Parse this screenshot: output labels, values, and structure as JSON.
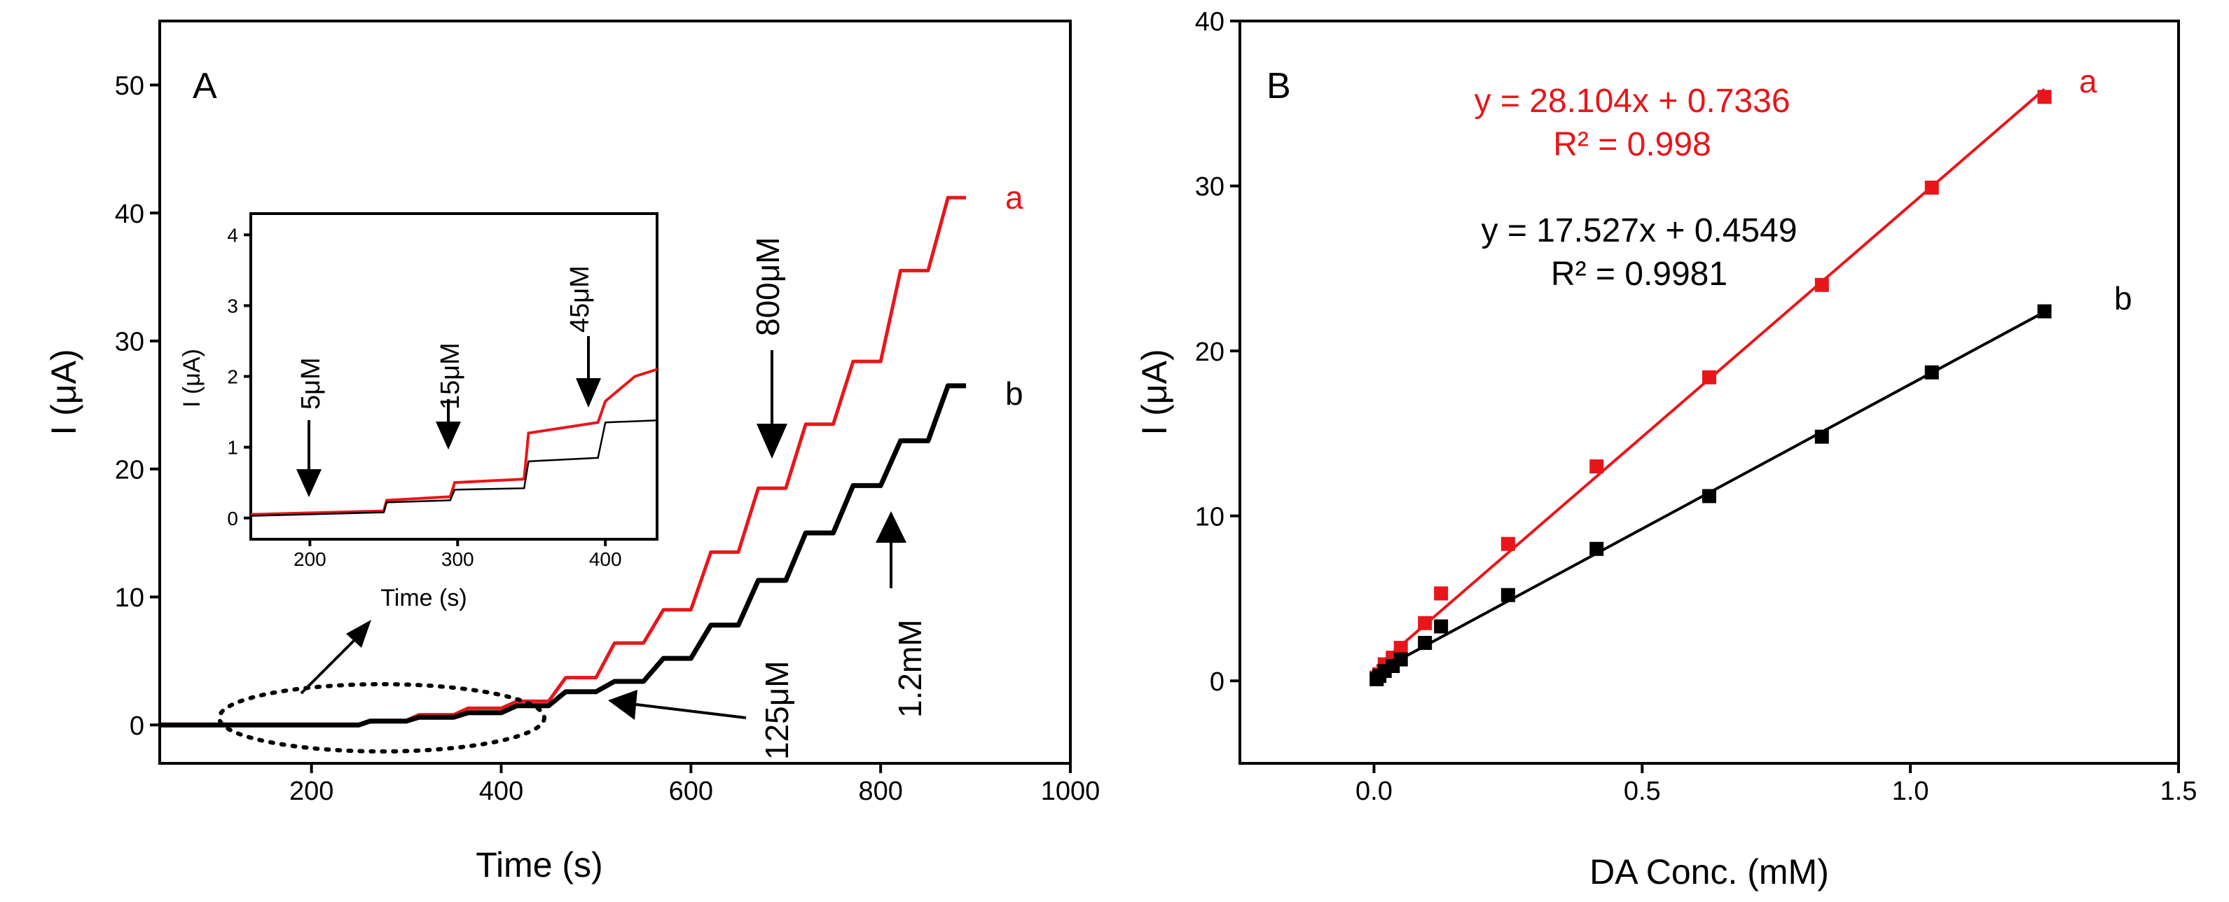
{
  "colors": {
    "a": "#e8161a",
    "b": "#000000"
  },
  "chart_data": [
    {
      "type": "line",
      "panel_label": "A",
      "xlabel": "Time (s)",
      "ylabel": "I (μA)",
      "xlim": [
        40,
        1000
      ],
      "ylim": [
        -3,
        55
      ],
      "xticks": [
        200,
        400,
        600,
        800,
        1000
      ],
      "yticks": [
        0,
        10,
        20,
        30,
        40,
        50
      ],
      "step_times": [
        250,
        300,
        350,
        400,
        450,
        500,
        550,
        600,
        650,
        700,
        750,
        800,
        850
      ],
      "series": [
        {
          "name": "a",
          "start": 0.05,
          "x_end": 890,
          "levels": [
            0.35,
            0.8,
            1.3,
            1.85,
            3.7,
            6.4,
            9.0,
            13.5,
            18.5,
            23.5,
            28.4,
            35.5,
            41.2
          ]
        },
        {
          "name": "b",
          "start": 0.0,
          "x_end": 890,
          "levels": [
            0.3,
            0.6,
            0.95,
            1.5,
            2.6,
            3.4,
            5.2,
            7.8,
            11.3,
            15.0,
            18.7,
            22.2,
            26.5
          ]
        }
      ],
      "annotations": [
        {
          "text": "800μM",
          "at_x": 690,
          "at_y": 20
        },
        {
          "text": "125μM",
          "at_x": 520,
          "at_y": 2
        },
        {
          "text": "1.2mM",
          "at_x": 810,
          "at_y": 18
        }
      ],
      "inset": {
        "type": "line",
        "xlabel": "Time (s)",
        "ylabel": "I (μA)",
        "xlim": [
          160,
          435
        ],
        "ylim": [
          -0.3,
          4.3
        ],
        "xticks": [
          200,
          300,
          400
        ],
        "yticks": [
          0,
          1,
          2,
          3,
          4
        ],
        "series": [
          {
            "name": "a",
            "points": [
              [
                160,
                0.05
              ],
              [
                250,
                0.1
              ],
              [
                252,
                0.25
              ],
              [
                295,
                0.3
              ],
              [
                298,
                0.5
              ],
              [
                345,
                0.55
              ],
              [
                348,
                1.2
              ],
              [
                395,
                1.35
              ],
              [
                400,
                1.65
              ],
              [
                420,
                2.0
              ],
              [
                435,
                2.1
              ]
            ]
          },
          {
            "name": "b",
            "points": [
              [
                160,
                0.03
              ],
              [
                250,
                0.08
              ],
              [
                252,
                0.22
              ],
              [
                295,
                0.25
              ],
              [
                298,
                0.4
              ],
              [
                345,
                0.42
              ],
              [
                348,
                0.8
              ],
              [
                395,
                0.85
              ],
              [
                400,
                1.35
              ],
              [
                435,
                1.38
              ]
            ]
          }
        ],
        "annotations": [
          {
            "text": "5μM",
            "at_x": 200,
            "at_y": 0.3
          },
          {
            "text": "15μM",
            "at_x": 285,
            "at_y": 0.6
          },
          {
            "text": "45μM",
            "at_x": 390,
            "at_y": 1.5
          }
        ]
      }
    },
    {
      "type": "scatter",
      "panel_label": "B",
      "xlabel": "DA Conc. (mM)",
      "ylabel": "I (μA)",
      "xlim": [
        -0.25,
        1.5
      ],
      "ylim": [
        -5,
        40
      ],
      "xticks": [
        0.0,
        0.5,
        1.0,
        1.5
      ],
      "yticks": [
        0,
        10,
        20,
        30,
        40
      ],
      "series": [
        {
          "name": "a",
          "x": [
            0.005,
            0.01,
            0.02,
            0.035,
            0.05,
            0.095,
            0.125,
            0.25,
            0.415,
            0.625,
            0.835,
            1.04,
            1.25
          ],
          "y": [
            0.2,
            0.4,
            1.0,
            1.4,
            2.0,
            3.5,
            5.3,
            8.3,
            13.0,
            18.4,
            24.0,
            29.9,
            35.4
          ],
          "fit": {
            "slope": 28.104,
            "intercept": 0.7336
          },
          "equation": "y = 28.104x + 0.7336",
          "r2": "R² = 0.998"
        },
        {
          "name": "b",
          "x": [
            0.005,
            0.01,
            0.02,
            0.035,
            0.05,
            0.095,
            0.125,
            0.25,
            0.415,
            0.625,
            0.835,
            1.04,
            1.25
          ],
          "y": [
            0.1,
            0.3,
            0.6,
            0.9,
            1.3,
            2.3,
            3.3,
            5.2,
            8.0,
            11.2,
            14.8,
            18.7,
            22.4
          ],
          "fit": {
            "slope": 17.527,
            "intercept": 0.4549
          },
          "equation": "y = 17.527x + 0.4549",
          "r2": "R² = 0.9981"
        }
      ]
    }
  ]
}
